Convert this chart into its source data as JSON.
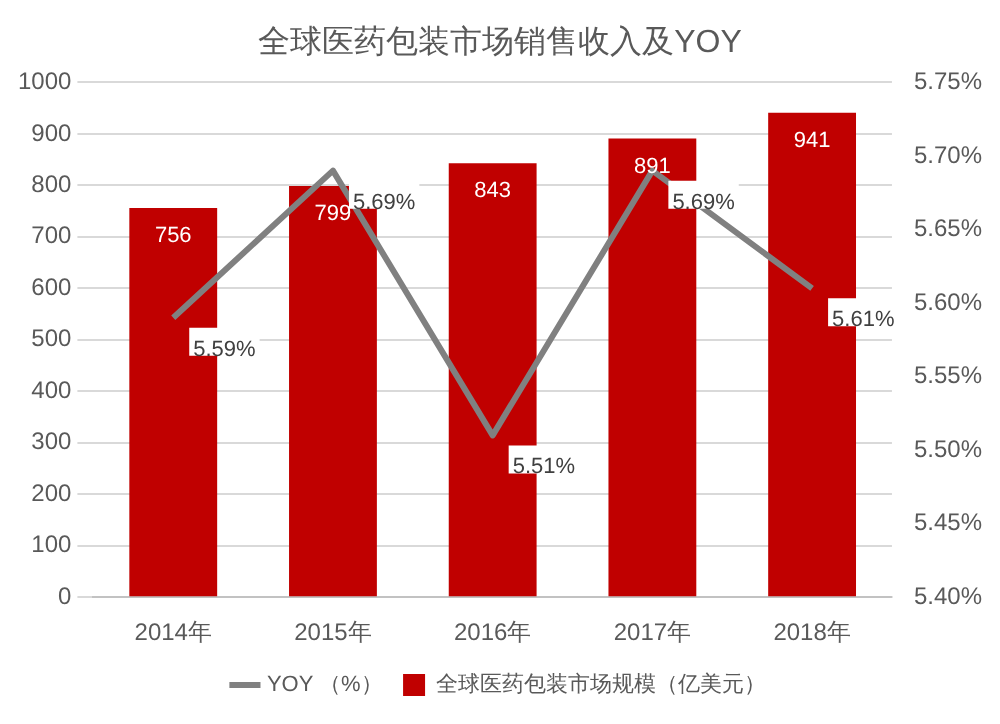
{
  "chart_data": {
    "type": "bar",
    "title": "全球医药包装市场销售收入及YOY",
    "categories": [
      "2014年",
      "2015年",
      "2016年",
      "2017年",
      "2018年"
    ],
    "series": [
      {
        "name": "全球医药包装市场规模（亿美元）",
        "color": "#c00000",
        "values": [
          756,
          799,
          843,
          891,
          941
        ]
      },
      {
        "name": "YOY （%）",
        "type": "line",
        "axis": "y2",
        "color": "#808080",
        "values": [
          5.59,
          5.69,
          5.51,
          5.69,
          5.61
        ],
        "value_labels": [
          "5.59%",
          "5.69%",
          "5.51%",
          "5.69%",
          "5.61%"
        ]
      }
    ],
    "data_labels": true,
    "ylim": [
      0,
      1000
    ],
    "yticks": [
      0,
      100,
      200,
      300,
      400,
      500,
      600,
      700,
      800,
      900,
      1000
    ],
    "y2lim": [
      5.4,
      5.75
    ],
    "y2ticks": [
      {
        "value": 5.4,
        "label": "5.40%"
      },
      {
        "value": 5.45,
        "label": "5.45%"
      },
      {
        "value": 5.5,
        "label": "5.50%"
      },
      {
        "value": 5.55,
        "label": "5.55%"
      },
      {
        "value": 5.6,
        "label": "5.60%"
      },
      {
        "value": 5.65,
        "label": "5.65%"
      },
      {
        "value": 5.7,
        "label": "5.70%"
      },
      {
        "value": 5.75,
        "label": "5.75%"
      }
    ],
    "grid": "y",
    "legend": "bottom",
    "marker": "none",
    "line_style": "solid"
  }
}
